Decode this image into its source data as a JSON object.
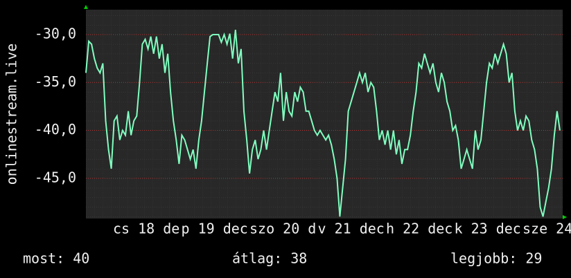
{
  "chart_data": {
    "type": "line",
    "y_label": "onlinestream.live",
    "color": "#80ffc0",
    "ylim": [
      -49.2,
      -27.4
    ],
    "yticks": [
      {
        "value": -30,
        "label": "-30,0"
      },
      {
        "value": -35,
        "label": "-35,0"
      },
      {
        "value": -40,
        "label": "-40,0"
      },
      {
        "value": -45,
        "label": "-45,0"
      }
    ],
    "grid": true,
    "x_labels": [
      "cs 18 dec",
      "p 19 dec",
      "szo 20 dec",
      "v 21 dec",
      "h 22 dec",
      "k 23 dec",
      "sze 24"
    ],
    "values": [
      -34,
      -30.7,
      -31,
      -32.5,
      -33.5,
      -34,
      -33,
      -39,
      -42,
      -44,
      -39,
      -38.5,
      -41,
      -40,
      -40.5,
      -38,
      -40.5,
      -39,
      -38.5,
      -35,
      -31,
      -30.5,
      -31.5,
      -30.2,
      -32,
      -30.2,
      -32.5,
      -31,
      -34,
      -32,
      -36,
      -39,
      -41,
      -43.5,
      -40.5,
      -41,
      -42,
      -43,
      -42,
      -44,
      -41,
      -39,
      -36,
      -33,
      -30.2,
      -30,
      -30,
      -30,
      -30.8,
      -30,
      -31,
      -29.9,
      -32.5,
      -29.5,
      -33,
      -31.5,
      -38,
      -41,
      -44.5,
      -42,
      -41,
      -43,
      -42,
      -40,
      -42,
      -40,
      -38,
      -36,
      -37,
      -34,
      -39,
      -36,
      -38,
      -38.5,
      -36,
      -37,
      -35.5,
      -36,
      -38,
      -38,
      -39,
      -40,
      -40.5,
      -40,
      -40.5,
      -41,
      -40.5,
      -41.5,
      -43,
      -45,
      -49,
      -46,
      -43,
      -38,
      -37,
      -36,
      -35,
      -34,
      -35,
      -34,
      -36,
      -35,
      -35.5,
      -38,
      -41,
      -40,
      -41.5,
      -40,
      -42,
      -40,
      -42.5,
      -41,
      -43.5,
      -42,
      -42,
      -40.5,
      -38,
      -36,
      -33,
      -33.5,
      -32,
      -33,
      -34,
      -33,
      -35,
      -36,
      -34,
      -35,
      -37,
      -38,
      -40,
      -39.5,
      -41,
      -44,
      -43,
      -42,
      -43,
      -44,
      -40,
      -42,
      -41,
      -38,
      -35,
      -33,
      -33.5,
      -32,
      -33,
      -32,
      -31,
      -32,
      -35,
      -34,
      -38,
      -40,
      -39,
      -40,
      -38.5,
      -39,
      -41,
      -42,
      -44,
      -48,
      -49,
      -47.5,
      -46,
      -44,
      -40.5,
      -38,
      -40
    ]
  },
  "footer": [
    {
      "label": "most:",
      "value": 40
    },
    {
      "label": "átlag:",
      "value": 38
    },
    {
      "label": "legjobb:",
      "value": 29
    }
  ]
}
